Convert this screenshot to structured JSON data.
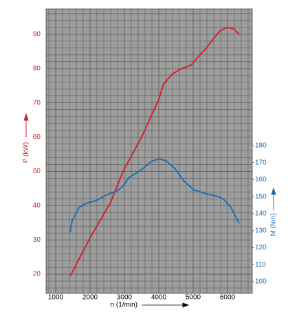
{
  "chart_data": {
    "type": "line",
    "xlabel": "n (1/min)",
    "ylabel": "P (kW)",
    "y2label": "M (Nm)",
    "xlim": [
      720,
      6720
    ],
    "xticks": [
      1000,
      2000,
      3000,
      4000,
      5000,
      6000
    ],
    "ylim": [
      14.4,
      97.4
    ],
    "yticks": [
      20,
      30,
      40,
      50,
      60,
      70,
      80,
      90
    ],
    "y2lim": [
      93.1,
      260.4
    ],
    "y2ticks": [
      100,
      110,
      120,
      130,
      140,
      150,
      160,
      170,
      180
    ],
    "grid": true,
    "series": [
      {
        "color": "#d3212c",
        "axis": "y",
        "x": [
          1420,
          2000,
          2600,
          2960,
          3500,
          4000,
          4140,
          4380,
          4620,
          4940,
          5380,
          5780,
          5980,
          6180,
          6340
        ],
        "values": [
          19.4,
          30.6,
          41,
          50,
          60,
          71,
          75.5,
          78.3,
          79.8,
          81,
          86,
          91,
          92,
          91.6,
          90
        ]
      },
      {
        "color": "#1f6db3",
        "axis": "y2",
        "x": [
          1420,
          1480,
          1680,
          1880,
          2180,
          2480,
          2780,
          2940,
          3140,
          3480,
          3780,
          4020,
          4220,
          4480,
          4740,
          5020,
          5380,
          5740,
          5880,
          6080,
          6340
        ],
        "values": [
          129,
          136,
          143.6,
          146,
          147.7,
          151,
          153.3,
          155.8,
          161.4,
          165.5,
          170.7,
          172.3,
          171,
          166.3,
          159,
          154,
          151.7,
          150,
          148.5,
          144.4,
          134.3
        ]
      }
    ]
  }
}
